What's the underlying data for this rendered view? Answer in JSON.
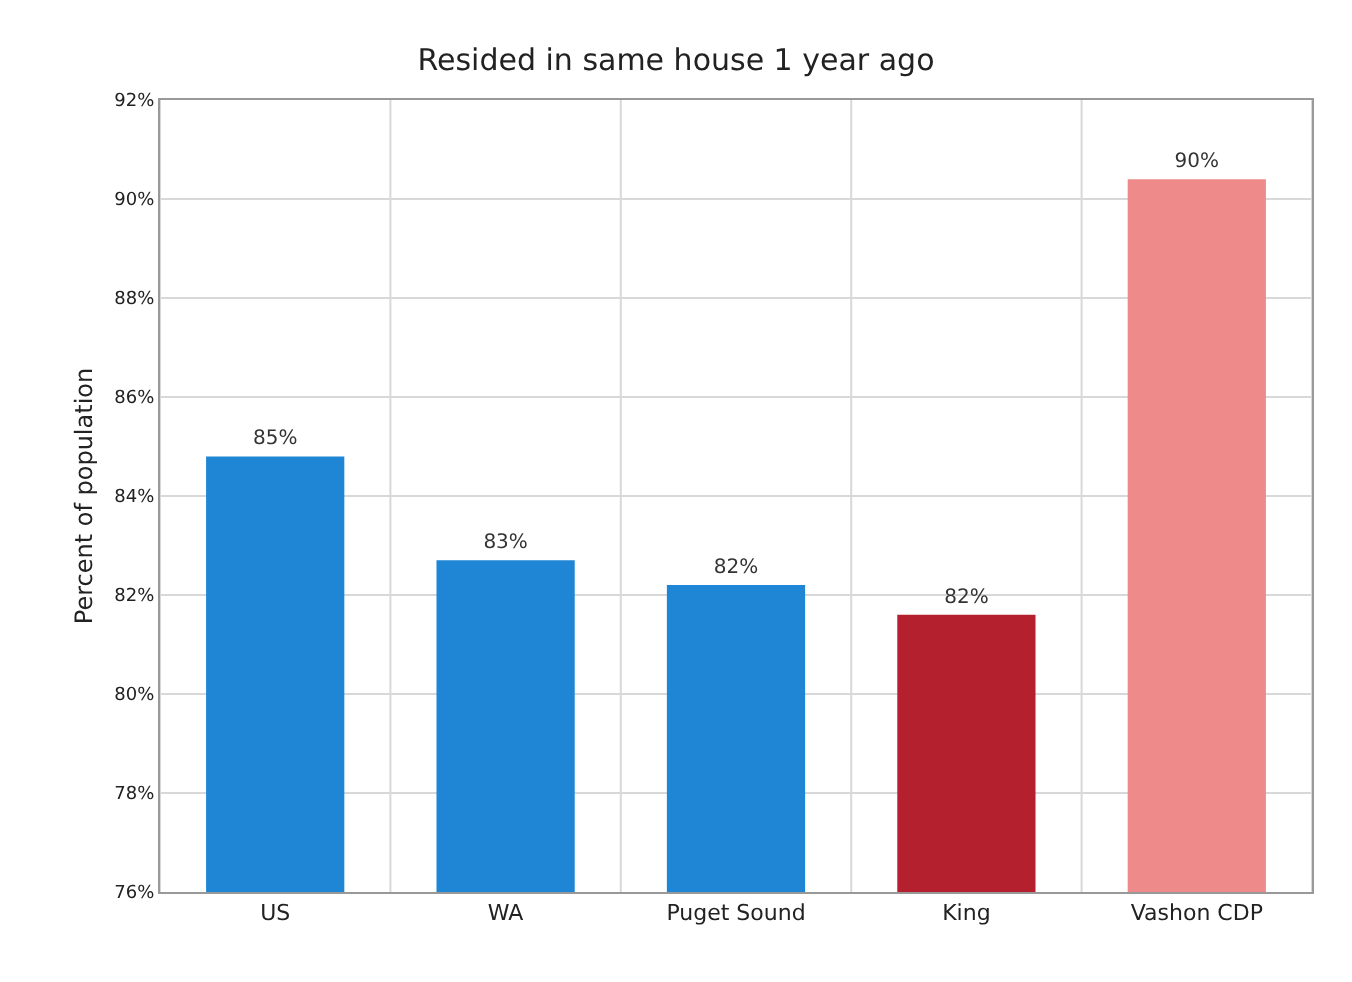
{
  "chart_data": {
    "type": "bar",
    "title": "Resided in same house 1 year ago",
    "ylabel": "Percent of population",
    "categories": [
      "US",
      "WA",
      "Puget Sound",
      "King",
      "Vashon CDP"
    ],
    "values": [
      84.8,
      82.7,
      82.2,
      81.6,
      90.4
    ],
    "colors": [
      "#1f86d6",
      "#1f86d6",
      "#1f86d6",
      "#b4202e",
      "#ee8a8a"
    ],
    "value_labels": [
      "85%",
      "83%",
      "82%",
      "82%",
      "90%"
    ],
    "ylim": [
      76,
      92
    ],
    "yticks": [
      {
        "value": 76,
        "label": "76%"
      },
      {
        "value": 78,
        "label": "78%"
      },
      {
        "value": 80,
        "label": "80%"
      },
      {
        "value": 82,
        "label": "82%"
      },
      {
        "value": 84,
        "label": "84%"
      },
      {
        "value": 86,
        "label": "86%"
      },
      {
        "value": 88,
        "label": "88%"
      },
      {
        "value": 90,
        "label": "90%"
      },
      {
        "value": 92,
        "label": "92%"
      }
    ],
    "grid": true
  }
}
